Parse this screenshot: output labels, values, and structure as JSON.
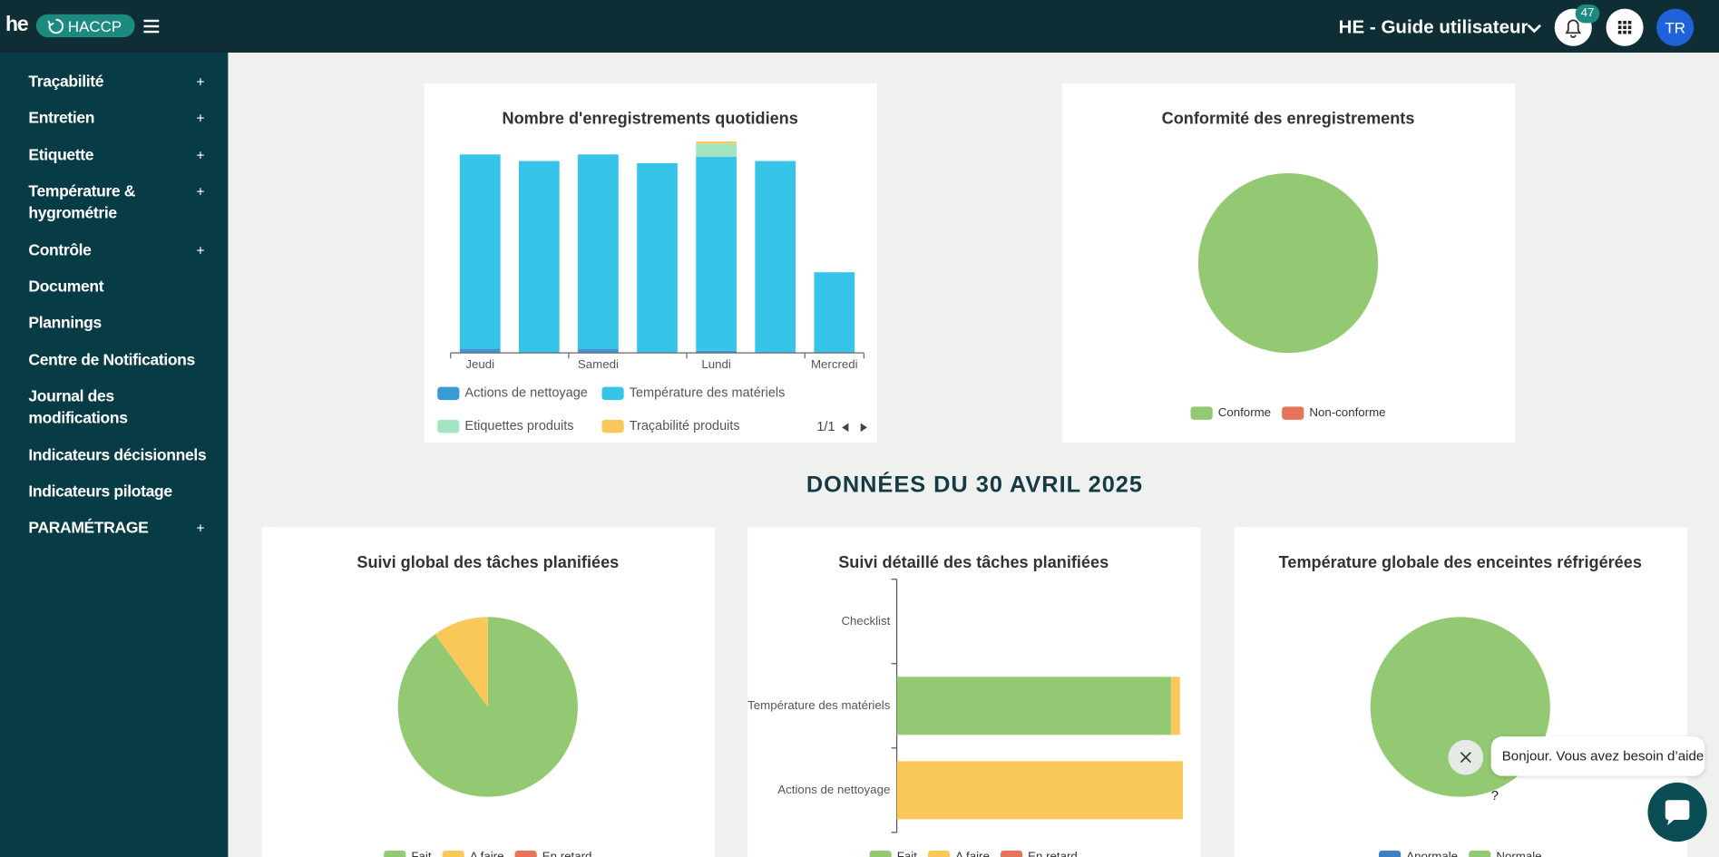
{
  "header": {
    "logo": "he",
    "app": "HACCP",
    "guide": "HE - Guide utilisateur",
    "notifications": "47",
    "avatar": "TR"
  },
  "sidebar": {
    "items": [
      {
        "label": "Traçabilité",
        "toggle": "+"
      },
      {
        "label": "Entretien",
        "toggle": "+"
      },
      {
        "label": "Etiquette",
        "toggle": "+"
      },
      {
        "label": "Température & hygrométrie",
        "toggle": "+"
      },
      {
        "label": "Contrôle",
        "toggle": "+"
      },
      {
        "label": "Document"
      },
      {
        "label": "Plannings"
      },
      {
        "label": "Centre de Notifications"
      },
      {
        "label": "Journal des modifications"
      },
      {
        "label": "Indicateurs décisionnels"
      },
      {
        "label": "Indicateurs pilotage"
      },
      {
        "label": "PARAMÉTRAGE",
        "toggle": "+"
      }
    ]
  },
  "section_title": "DONNÉES DU 30 AVRIL 2025",
  "chat": {
    "message": "Bonjour. Vous avez besoin d’aide ?"
  },
  "chart_data": [
    {
      "type": "bar",
      "title": "Nombre d'enregistrements quotidiens",
      "categories": [
        "Jeudi",
        null,
        "Samedi",
        null,
        "Lundi",
        null,
        "Mercredi"
      ],
      "series": [
        {
          "name": "Actions de nettoyage",
          "color": "#3b9ad6",
          "values": [
            2,
            0,
            2,
            0,
            1,
            0,
            0
          ]
        },
        {
          "name": "Température des matériels",
          "color": "#36c5e9",
          "values": [
            89,
            88,
            89,
            87,
            89,
            88,
            37
          ]
        },
        {
          "name": "Etiquettes produits",
          "color": "#a3e4c3",
          "values": [
            0,
            0,
            0,
            0,
            6,
            0,
            0
          ]
        },
        {
          "name": "Traçabilité produits",
          "color": "#fac858",
          "values": [
            0,
            0,
            0,
            0,
            1,
            0,
            0
          ]
        }
      ],
      "legend_page": "1/1"
    },
    {
      "type": "pie",
      "title": "Conformité des enregistrements",
      "categories": [
        "Conforme",
        "Non-conforme"
      ],
      "values": [
        100,
        0
      ],
      "colors": [
        "#93c972",
        "#e6735c"
      ]
    },
    {
      "type": "pie",
      "title": "Suivi global des tâches planifiées",
      "categories": [
        "Fait",
        "A faire",
        "En retard"
      ],
      "values": [
        90,
        10,
        0
      ],
      "colors": [
        "#93c972",
        "#fac858",
        "#e6735c"
      ]
    },
    {
      "type": "hbar",
      "title": "Suivi détaillé des tâches planifiées",
      "categories": [
        "Checklist",
        "Température des matériels",
        "Actions de nettoyage"
      ],
      "series": [
        {
          "name": "Fait",
          "color": "#93c972",
          "values": [
            0,
            94,
            0
          ]
        },
        {
          "name": "A faire",
          "color": "#fac858",
          "values": [
            0,
            3,
            98
          ]
        },
        {
          "name": "En retard",
          "color": "#e6735c",
          "values": [
            0,
            0,
            0
          ]
        }
      ]
    },
    {
      "type": "pie",
      "title": "Température globale des enceintes réfrigérées",
      "categories": [
        "Anormale",
        "Normale"
      ],
      "values": [
        0,
        100
      ],
      "colors": [
        "#3f7fc1",
        "#93c972"
      ]
    }
  ]
}
